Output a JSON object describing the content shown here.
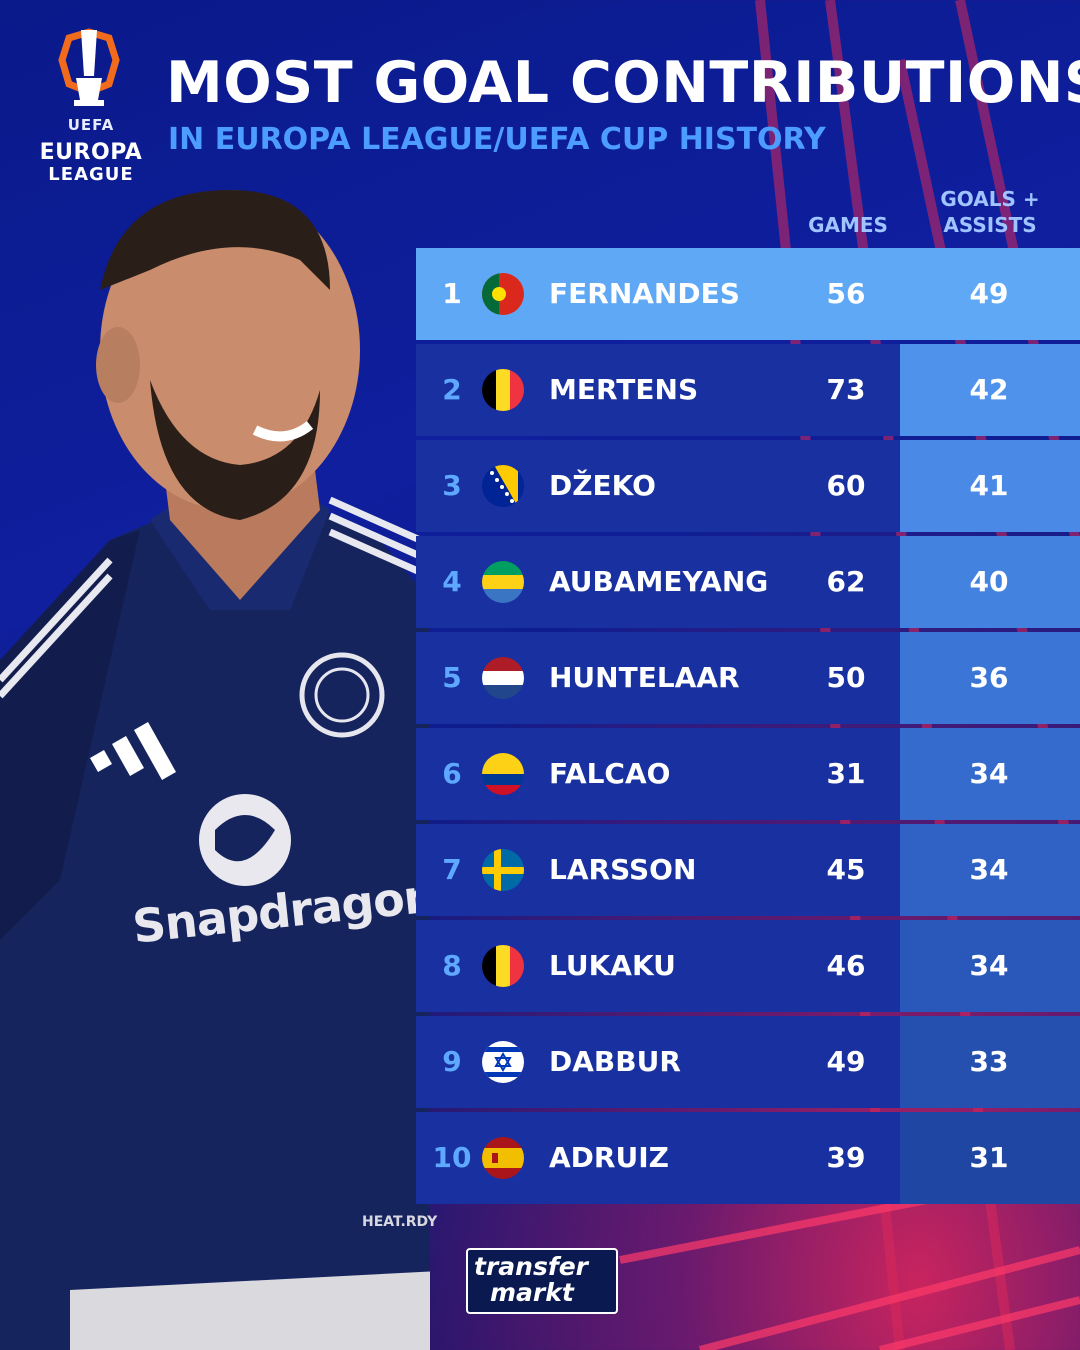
{
  "logo": {
    "uefa": "UEFA",
    "line1": "EUROPA",
    "line2": "LEAGUE",
    "icon": "europa-league-trophy-icon"
  },
  "header": {
    "title": "MOST GOAL CONTRIBUTIONS",
    "subtitle": "IN EUROPA LEAGUE/UEFA CUP HISTORY"
  },
  "columns": {
    "games": "GAMES",
    "ga_line1": "GOALS +",
    "ga_line2": "ASSISTS"
  },
  "player": {
    "sponsor": "Snapdragon",
    "kit_tag": "HEAT.RDY",
    "badge": "manchester-united-crest-icon"
  },
  "rows": [
    {
      "rank": "1",
      "name": "FERNANDES",
      "games": "56",
      "ga": "49",
      "flag": "portugal-flag-icon",
      "ga_color": "#5ea8f5"
    },
    {
      "rank": "2",
      "name": "MERTENS",
      "games": "73",
      "ga": "42",
      "flag": "belgium-flag-icon",
      "ga_color": "#4f92ec"
    },
    {
      "rank": "3",
      "name": "DŽEKO",
      "games": "60",
      "ga": "41",
      "flag": "bosnia-flag-icon",
      "ga_color": "#4a8ae6"
    },
    {
      "rank": "4",
      "name": "AUBAMEYANG",
      "games": "62",
      "ga": "40",
      "flag": "gabon-flag-icon",
      "ga_color": "#4382df"
    },
    {
      "rank": "5",
      "name": "HUNTELAAR",
      "games": "50",
      "ga": "36",
      "flag": "netherlands-flag-icon",
      "ga_color": "#3b76d6"
    },
    {
      "rank": "6",
      "name": "FALCAO",
      "games": "31",
      "ga": "34",
      "flag": "colombia-flag-icon",
      "ga_color": "#346bcd"
    },
    {
      "rank": "7",
      "name": "LARSSON",
      "games": "45",
      "ga": "34",
      "flag": "sweden-flag-icon",
      "ga_color": "#2f62c4"
    },
    {
      "rank": "8",
      "name": "LUKAKU",
      "games": "46",
      "ga": "34",
      "flag": "belgium-flag-icon",
      "ga_color": "#2a58ba"
    },
    {
      "rank": "9",
      "name": "DABBUR",
      "games": "49",
      "ga": "33",
      "flag": "israel-flag-icon",
      "ga_color": "#2550b0"
    },
    {
      "rank": "10",
      "name": "ADRUIZ",
      "games": "39",
      "ga": "31",
      "flag": "spain-flag-icon",
      "ga_color": "#2046a4"
    }
  ],
  "footer": {
    "brand_line1": "transfer",
    "brand_line2": "markt"
  }
}
